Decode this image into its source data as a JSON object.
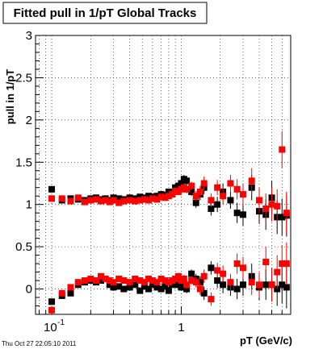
{
  "title": "Fitted pull in 1/pT  Global Tracks",
  "footer": "Thu Oct 27 22:05:10 2011",
  "chart_data": {
    "type": "scatter",
    "title": "Fitted pull in 1/pT  Global Tracks",
    "xlabel": "pT (GeV/c)",
    "ylabel": "pull in 1/pT",
    "xscale": "log",
    "xlim": [
      0.075,
      7.0
    ],
    "ylim": [
      -0.3,
      3.0
    ],
    "grid": true,
    "x_tick_labels": [
      {
        "value": 0.1,
        "base": "10",
        "exp": "-1"
      },
      {
        "value": 1,
        "label": "1"
      }
    ],
    "y_ticks": [
      0,
      0.5,
      1,
      1.5,
      2,
      2.5,
      3
    ],
    "y_tick_labels": [
      "0",
      "0.5",
      "1",
      "1.5",
      "2",
      "2.5",
      "3"
    ],
    "series": [
      {
        "color": "#000000",
        "x": [
          0.1,
          0.12,
          0.14,
          0.16,
          0.18,
          0.2,
          0.22,
          0.24,
          0.26,
          0.28,
          0.3,
          0.33,
          0.36,
          0.4,
          0.44,
          0.48,
          0.52,
          0.56,
          0.6,
          0.65,
          0.7,
          0.75,
          0.8,
          0.85,
          0.9,
          0.95,
          1.0,
          1.05,
          1.1,
          1.2,
          1.3,
          1.4,
          1.5,
          1.7,
          1.9,
          2.1,
          2.4,
          2.7,
          3.0,
          3.5,
          4.0,
          4.5,
          5.0,
          5.5,
          6.0,
          6.5
        ],
        "y": [
          1.18,
          1.05,
          1.07,
          1.06,
          1.05,
          1.07,
          1.08,
          1.06,
          1.07,
          1.05,
          1.08,
          1.07,
          1.06,
          1.08,
          1.07,
          1.09,
          1.08,
          1.1,
          1.09,
          1.1,
          1.12,
          1.11,
          1.15,
          1.13,
          1.2,
          1.22,
          1.25,
          1.3,
          1.28,
          1.15,
          1.02,
          1.12,
          1.2,
          0.95,
          1.0,
          1.15,
          1.05,
          0.9,
          0.88,
          1.2,
          0.92,
          0.88,
          1.08,
          0.85,
          0.85,
          0.87
        ],
        "err": [
          0.04,
          0.02,
          0.02,
          0.02,
          0.02,
          0.02,
          0.02,
          0.02,
          0.02,
          0.02,
          0.02,
          0.02,
          0.02,
          0.02,
          0.02,
          0.02,
          0.02,
          0.02,
          0.02,
          0.02,
          0.03,
          0.03,
          0.03,
          0.03,
          0.04,
          0.04,
          0.04,
          0.05,
          0.05,
          0.05,
          0.06,
          0.07,
          0.08,
          0.08,
          0.09,
          0.1,
          0.1,
          0.12,
          0.13,
          0.15,
          0.15,
          0.18,
          0.2,
          0.2,
          0.22,
          0.25
        ]
      },
      {
        "color": "#ff0000",
        "x": [
          0.1,
          0.12,
          0.14,
          0.16,
          0.18,
          0.2,
          0.22,
          0.24,
          0.26,
          0.28,
          0.3,
          0.33,
          0.36,
          0.4,
          0.44,
          0.48,
          0.52,
          0.56,
          0.6,
          0.65,
          0.7,
          0.75,
          0.8,
          0.85,
          0.9,
          0.95,
          1.0,
          1.05,
          1.1,
          1.2,
          1.3,
          1.4,
          1.5,
          1.7,
          1.9,
          2.1,
          2.4,
          2.7,
          3.0,
          3.5,
          4.0,
          4.5,
          5.0,
          5.5,
          6.0,
          6.5
        ],
        "y": [
          1.07,
          1.07,
          1.04,
          1.08,
          1.03,
          1.05,
          1.06,
          1.04,
          1.05,
          1.03,
          1.05,
          1.02,
          1.04,
          1.05,
          1.04,
          1.05,
          1.06,
          1.05,
          1.07,
          1.06,
          1.09,
          1.08,
          1.1,
          1.12,
          1.16,
          1.15,
          1.18,
          1.2,
          1.18,
          1.22,
          1.1,
          1.15,
          1.25,
          1.05,
          1.2,
          1.1,
          1.25,
          1.18,
          1.12,
          1.28,
          1.05,
          0.95,
          1.0,
          0.98,
          1.65,
          0.9
        ],
        "err": [
          0.04,
          0.02,
          0.02,
          0.02,
          0.02,
          0.02,
          0.02,
          0.02,
          0.02,
          0.02,
          0.02,
          0.02,
          0.02,
          0.02,
          0.02,
          0.02,
          0.02,
          0.02,
          0.02,
          0.02,
          0.03,
          0.03,
          0.03,
          0.03,
          0.04,
          0.04,
          0.04,
          0.05,
          0.05,
          0.05,
          0.06,
          0.07,
          0.08,
          0.08,
          0.09,
          0.1,
          0.1,
          0.12,
          0.13,
          0.15,
          0.15,
          0.18,
          0.2,
          0.2,
          0.22,
          0.25
        ]
      },
      {
        "color": "#000000",
        "x": [
          0.1,
          0.12,
          0.14,
          0.16,
          0.18,
          0.2,
          0.22,
          0.24,
          0.26,
          0.28,
          0.3,
          0.33,
          0.36,
          0.4,
          0.44,
          0.48,
          0.52,
          0.56,
          0.6,
          0.65,
          0.7,
          0.75,
          0.8,
          0.85,
          0.9,
          0.95,
          1.0,
          1.05,
          1.1,
          1.2,
          1.3,
          1.4,
          1.5,
          1.7,
          1.9,
          2.1,
          2.4,
          2.7,
          3.0,
          3.5,
          4.0,
          4.5,
          5.0,
          5.5,
          6.0,
          6.5
        ],
        "y": [
          -0.15,
          -0.08,
          -0.05,
          0.05,
          0.08,
          0.1,
          0.08,
          0.1,
          0.12,
          0.05,
          0.02,
          0.03,
          0.0,
          0.02,
          0.05,
          -0.02,
          0.03,
          0.0,
          0.05,
          0.02,
          0.0,
          0.03,
          -0.02,
          0.05,
          0.08,
          0.05,
          0.02,
          0.05,
          0.0,
          0.18,
          0.12,
          0.08,
          -0.05,
          0.25,
          0.1,
          0.05,
          0.02,
          0.0,
          0.05,
          0.15,
          0.02,
          0.05,
          0.05,
          0.0,
          0.05,
          0.02
        ],
        "err": [
          0.04,
          0.02,
          0.02,
          0.02,
          0.02,
          0.02,
          0.02,
          0.02,
          0.02,
          0.02,
          0.02,
          0.02,
          0.02,
          0.02,
          0.02,
          0.02,
          0.02,
          0.02,
          0.02,
          0.02,
          0.03,
          0.03,
          0.03,
          0.03,
          0.04,
          0.04,
          0.04,
          0.05,
          0.05,
          0.05,
          0.06,
          0.07,
          0.08,
          0.08,
          0.09,
          0.1,
          0.1,
          0.12,
          0.13,
          0.15,
          0.15,
          0.18,
          0.2,
          0.2,
          0.22,
          0.25
        ]
      },
      {
        "color": "#ff0000",
        "x": [
          0.1,
          0.12,
          0.14,
          0.16,
          0.18,
          0.2,
          0.22,
          0.24,
          0.26,
          0.28,
          0.3,
          0.33,
          0.36,
          0.4,
          0.44,
          0.48,
          0.52,
          0.56,
          0.6,
          0.65,
          0.7,
          0.75,
          0.8,
          0.85,
          0.9,
          0.95,
          1.0,
          1.05,
          1.1,
          1.2,
          1.3,
          1.4,
          1.5,
          1.7,
          1.9,
          2.1,
          2.4,
          2.7,
          3.0,
          3.5,
          4.0,
          4.5,
          5.0,
          5.5,
          6.0,
          6.5
        ],
        "y": [
          -0.25,
          -0.05,
          0.02,
          0.08,
          0.1,
          0.12,
          0.1,
          0.15,
          0.12,
          0.1,
          0.08,
          0.12,
          0.1,
          0.08,
          0.12,
          0.1,
          0.08,
          0.12,
          0.1,
          0.08,
          0.12,
          0.1,
          0.08,
          0.1,
          0.12,
          0.15,
          0.1,
          0.12,
          0.05,
          0.1,
          0.08,
          0.0,
          0.15,
          -0.12,
          0.22,
          0.18,
          0.08,
          0.3,
          0.25,
          0.08,
          0.05,
          0.32,
          0.05,
          0.2,
          0.3,
          0.3
        ],
        "err": [
          0.04,
          0.02,
          0.02,
          0.02,
          0.02,
          0.02,
          0.02,
          0.02,
          0.02,
          0.02,
          0.02,
          0.02,
          0.02,
          0.02,
          0.02,
          0.02,
          0.02,
          0.02,
          0.02,
          0.02,
          0.03,
          0.03,
          0.03,
          0.03,
          0.04,
          0.04,
          0.04,
          0.05,
          0.05,
          0.05,
          0.06,
          0.07,
          0.08,
          0.08,
          0.09,
          0.1,
          0.1,
          0.12,
          0.13,
          0.15,
          0.15,
          0.18,
          0.2,
          0.2,
          0.22,
          0.25
        ]
      }
    ]
  }
}
